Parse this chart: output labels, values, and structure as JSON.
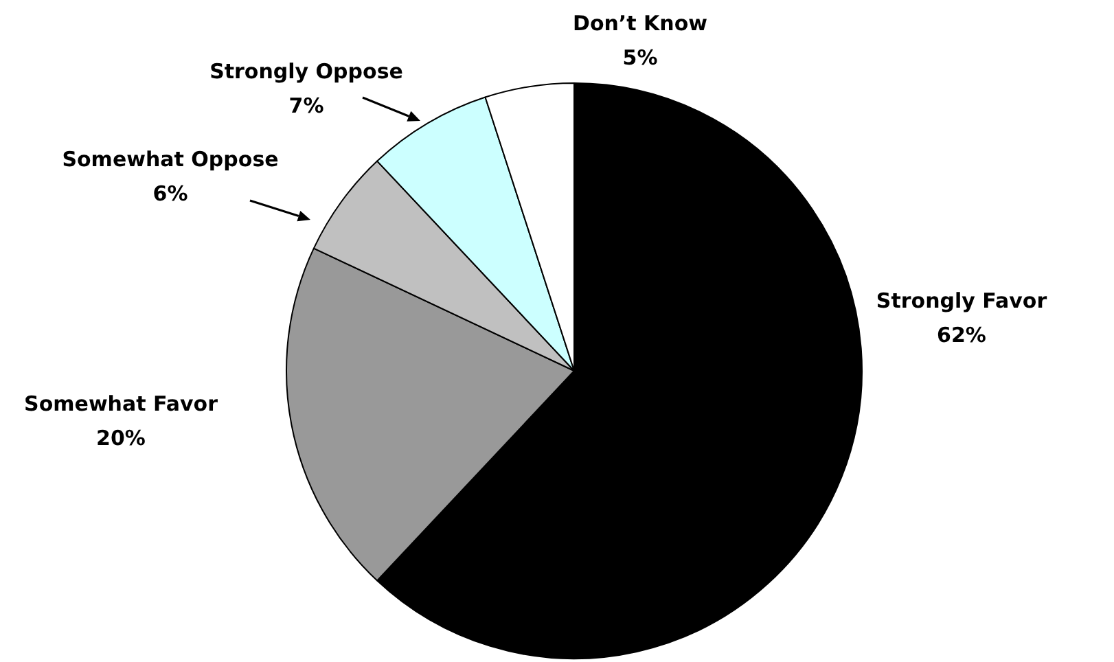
{
  "chart_data": {
    "type": "pie",
    "categories": [
      "Strongly Favor",
      "Somewhat Favor",
      "Somewhat Oppose",
      "Strongly Oppose",
      "Don’t Know"
    ],
    "values": [
      62,
      20,
      6,
      7,
      5
    ],
    "colors": [
      "#000000",
      "#999999",
      "#c0c0c0",
      "#ccffff",
      "#ffffff"
    ],
    "legend": false,
    "value_labels": [
      "62%",
      "20%",
      "6%",
      "7%",
      "5%"
    ]
  }
}
